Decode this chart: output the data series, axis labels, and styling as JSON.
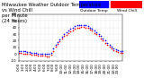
{
  "title": "Milwaukee Weather Outdoor Temperature\nvs Wind Chill\nper Minute\n(24 Hours)",
  "background_color": "#ffffff",
  "legend_label_temp": "Outdoor Temp",
  "legend_label_wc": "Wind Chill",
  "temp_color": "#0000ff",
  "wc_color": "#ff0000",
  "x_ticks": [
    "0:00",
    "1:00",
    "2:00",
    "3:00",
    "4:00",
    "5:00",
    "6:00",
    "7:00",
    "8:00",
    "9:00",
    "10:00",
    "11:00",
    "12:00",
    "13:00",
    "14:00",
    "15:00",
    "16:00",
    "17:00",
    "18:00",
    "19:00",
    "20:00",
    "21:00",
    "22:00",
    "23:00"
  ],
  "ylim": [
    -10,
    60
  ],
  "yticks": [
    -10,
    0,
    10,
    20,
    30,
    40,
    50,
    60
  ],
  "temp_data_x": [
    0,
    30,
    60,
    90,
    120,
    150,
    180,
    210,
    240,
    270,
    300,
    330,
    360,
    390,
    420,
    450,
    480,
    510,
    540,
    570,
    600,
    630,
    660,
    690,
    720,
    750,
    780,
    810,
    840,
    870,
    900,
    930,
    960,
    990,
    1020,
    1050,
    1080,
    1110,
    1140,
    1170,
    1200,
    1230,
    1260,
    1290,
    1320,
    1350,
    1380,
    1410,
    1440
  ],
  "temp_data_y": [
    5,
    5,
    4,
    4,
    3,
    3,
    2,
    2,
    2,
    1,
    1,
    1,
    1,
    0,
    0,
    2,
    8,
    14,
    18,
    22,
    26,
    30,
    33,
    35,
    38,
    40,
    42,
    43,
    43,
    44,
    44,
    43,
    42,
    40,
    38,
    35,
    33,
    30,
    27,
    24,
    20,
    17,
    14,
    11,
    9,
    7,
    6,
    5,
    5
  ],
  "wc_data_x": [
    0,
    30,
    60,
    90,
    120,
    150,
    180,
    210,
    240,
    270,
    300,
    330,
    360,
    390,
    420,
    450,
    480,
    510,
    540,
    570,
    600,
    630,
    660,
    690,
    720,
    750,
    780,
    810,
    840,
    870,
    900,
    930,
    960,
    990,
    1020,
    1050,
    1080,
    1110,
    1140,
    1170,
    1200,
    1230,
    1260,
    1290,
    1320,
    1350,
    1380,
    1410,
    1440
  ],
  "wc_data_y": [
    2,
    2,
    1,
    1,
    0,
    0,
    -1,
    -1,
    -1,
    -2,
    -2,
    -2,
    -2,
    -3,
    -3,
    -1,
    5,
    11,
    15,
    19,
    23,
    27,
    29,
    31,
    34,
    36,
    38,
    39,
    40,
    41,
    41,
    40,
    39,
    37,
    35,
    32,
    30,
    27,
    24,
    21,
    17,
    14,
    11,
    8,
    6,
    4,
    3,
    2,
    2
  ],
  "grid_color": "#bbbbbb",
  "dot_size": 1.5,
  "title_fontsize": 3.8,
  "tick_fontsize": 3.0,
  "legend_fontsize": 3.2,
  "xlim": [
    0,
    1440
  ]
}
